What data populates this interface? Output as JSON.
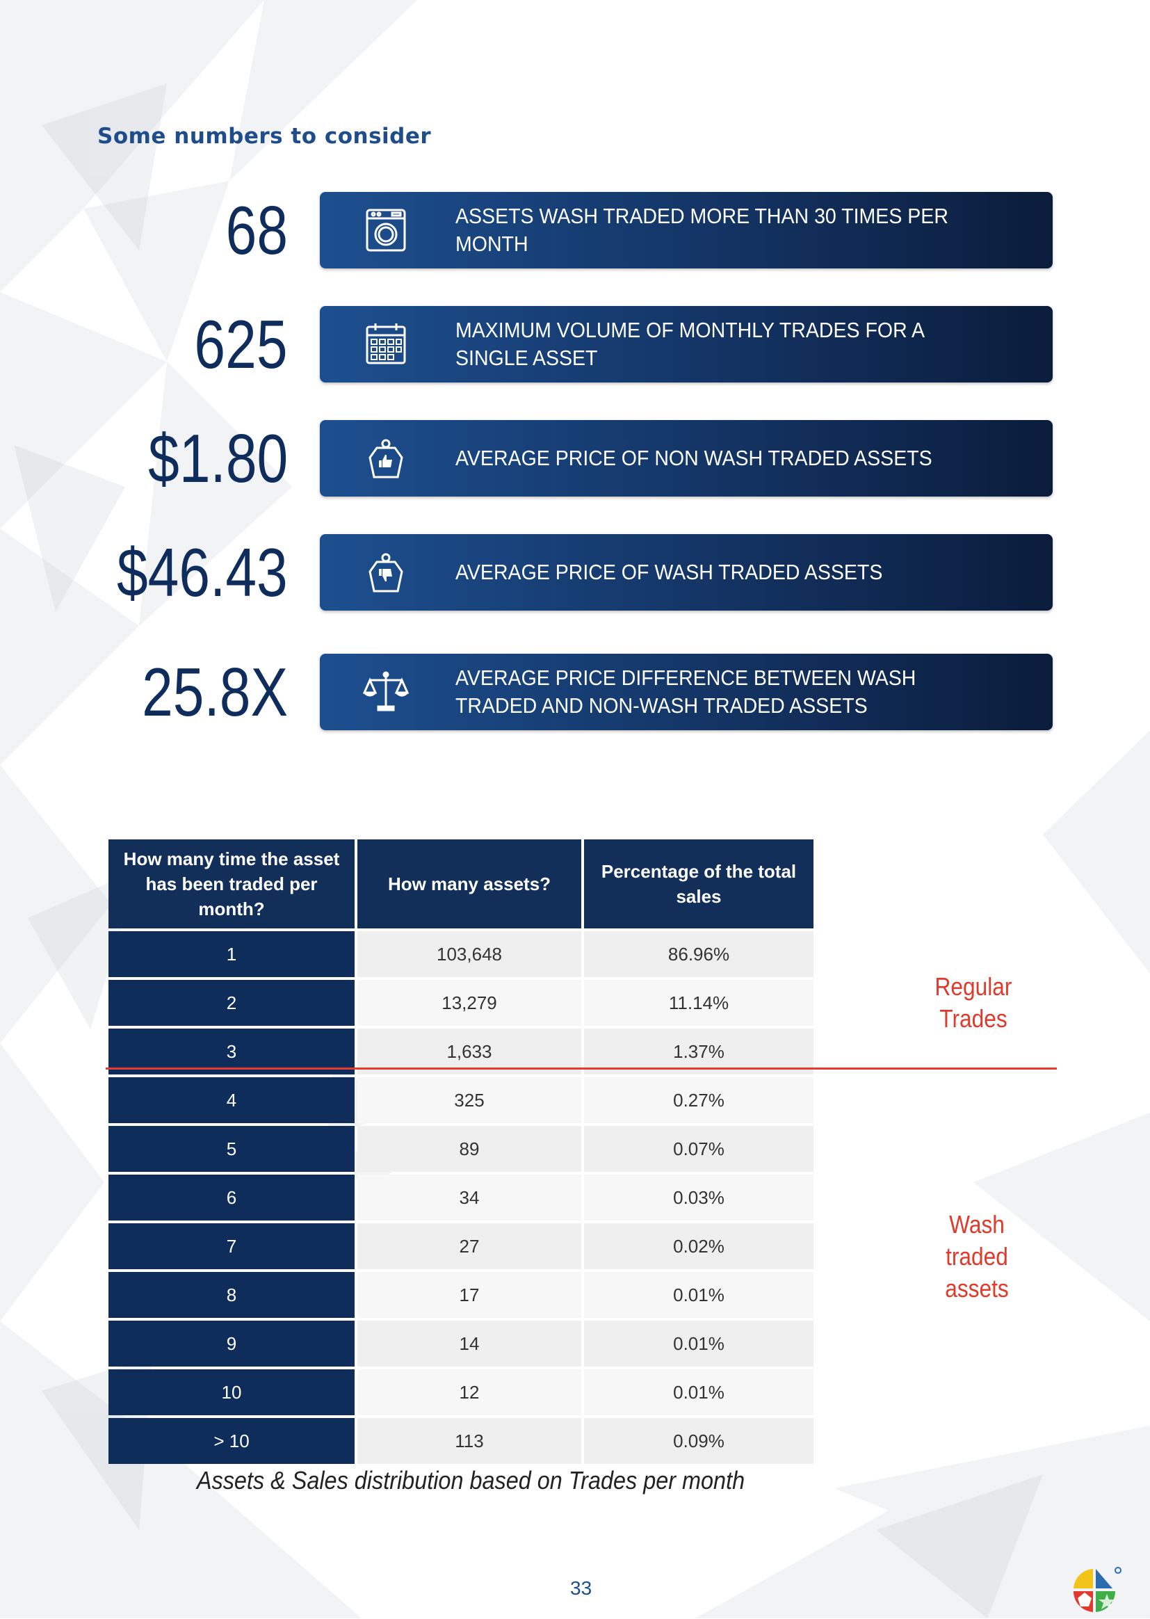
{
  "heading": "Some numbers to consider",
  "stats": [
    {
      "value": "68",
      "label": "ASSETS WASH TRADED MORE THAN 30 TIMES PER MONTH",
      "icon": "washing-machine-icon"
    },
    {
      "value": "625",
      "label": "MAXIMUM VOLUME OF MONTHLY TRADES FOR A SINGLE ASSET",
      "icon": "calendar-icon"
    },
    {
      "value": "$1.80",
      "label": "AVERAGE PRICE OF NON WASH TRADED ASSETS",
      "icon": "price-tag-thumbs-up-icon"
    },
    {
      "value": "$46.43",
      "label": "AVERAGE PRICE OF WASH TRADED ASSETS",
      "icon": "price-tag-thumbs-down-icon"
    },
    {
      "value": "25.8X",
      "label": "AVERAGE PRICE DIFFERENCE BETWEEN WASH TRADED AND NON-WASH TRADED ASSETS",
      "icon": "balance-scale-icon"
    }
  ],
  "table": {
    "headers": [
      "How many time the asset has been traded per month?",
      "How many assets?",
      "Percentage of the total sales"
    ],
    "rows": [
      [
        "1",
        "103,648",
        "86.96%"
      ],
      [
        "2",
        "13,279",
        "11.14%"
      ],
      [
        "3",
        "1,633",
        "1.37%"
      ],
      [
        "4",
        "325",
        "0.27%"
      ],
      [
        "5",
        "89",
        "0.07%"
      ],
      [
        "6",
        "34",
        "0.03%"
      ],
      [
        "7",
        "27",
        "0.02%"
      ],
      [
        "8",
        "17",
        "0.01%"
      ],
      [
        "9",
        "14",
        "0.01%"
      ],
      [
        "10",
        "12",
        "0.01%"
      ],
      [
        "> 10",
        "113",
        "0.09%"
      ]
    ]
  },
  "labels": {
    "regular_line1": "Regular",
    "regular_line2": "Trades",
    "wash_line1": "Wash",
    "wash_line2": "traded",
    "wash_line3": "assets"
  },
  "caption": "Assets & Sales distribution based on Trades per month",
  "page_number": "33",
  "colors": {
    "navy": "#0f2d5a",
    "heading_blue": "#1f4d8c",
    "accent_red": "#e03a2c"
  }
}
